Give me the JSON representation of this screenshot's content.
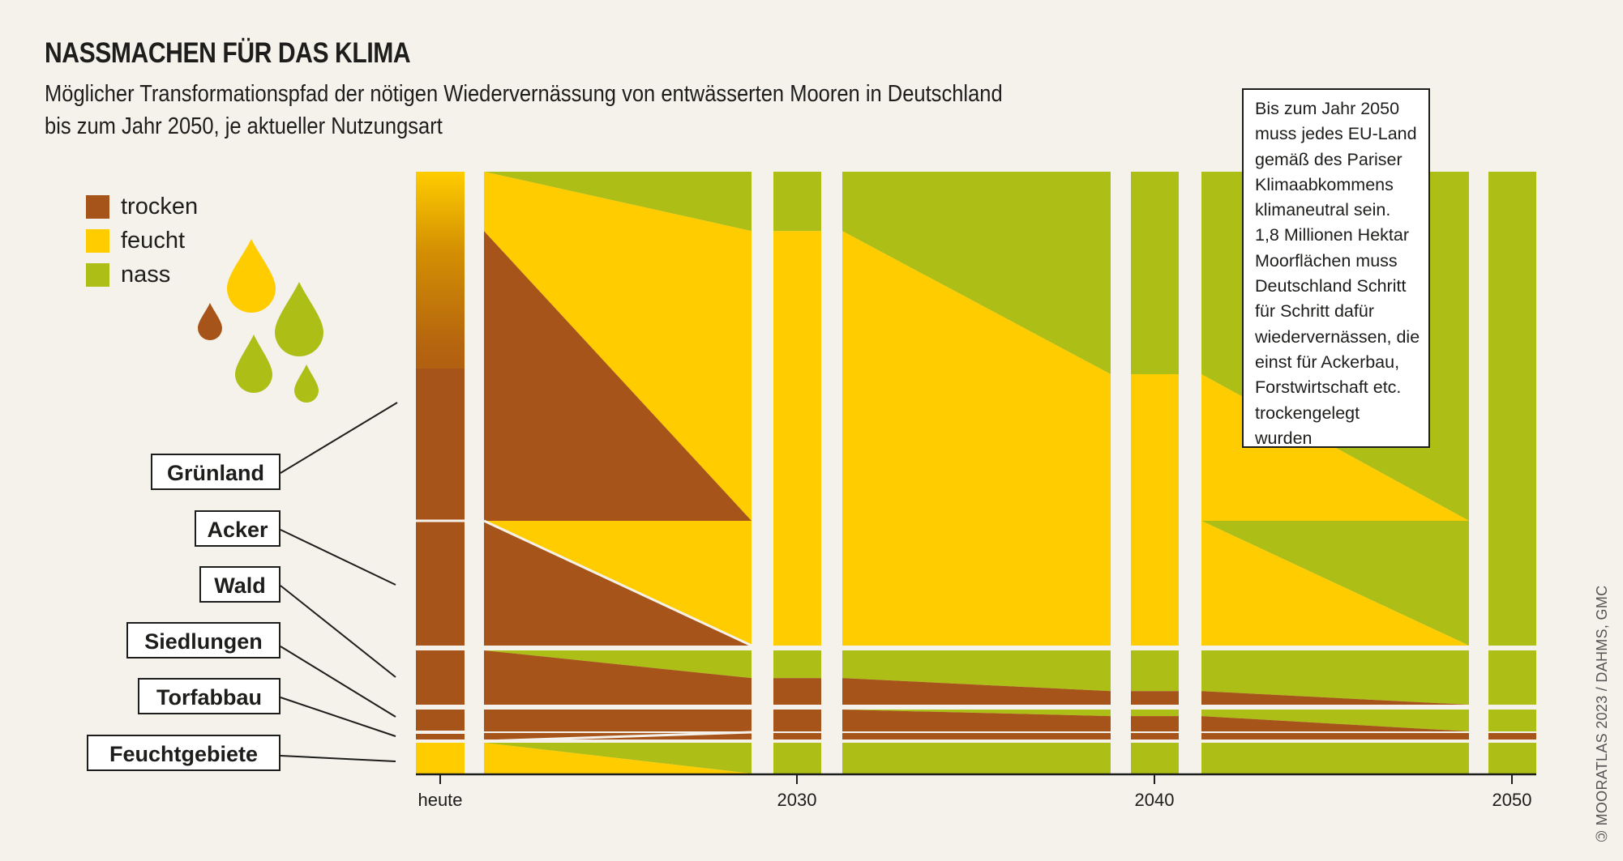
{
  "header": {
    "title": "NASSMACHEN FÜR DAS KLIMA",
    "subtitle_line1": "Möglicher Transformationspfad der nötigen Wiedervernässung von entwässerten Mooren in Deutschland",
    "subtitle_line2": "bis zum Jahr 2050, je aktueller Nutzungsart"
  },
  "legend": [
    {
      "label": "trocken",
      "color": "#a7541a"
    },
    {
      "label": "feucht",
      "color": "#ffcc00"
    },
    {
      "label": "nass",
      "color": "#adbe17"
    }
  ],
  "decoration": {
    "drops": [
      {
        "name": "feucht",
        "color": "#ffcc00"
      },
      {
        "name": "trocken",
        "color": "#a7541a"
      },
      {
        "name": "nass",
        "color": "#adbe17"
      },
      {
        "name": "nass",
        "color": "#adbe17"
      },
      {
        "name": "nass",
        "color": "#adbe17"
      }
    ]
  },
  "callout": {
    "lines": [
      "Bis zum Jahr 2050",
      "muss jedes EU-Land",
      "gemäß des Pariser",
      "Klimaabkommens",
      "klimaneutral sein.",
      "1,8 Millionen Hektar",
      "Moorflächen muss",
      "Deutschland Schritt",
      "für Schritt dafür",
      "wiedervernässen, die",
      "einst für Ackerbau,",
      "Forstwirtschaft etc.",
      "trockengelegt",
      "wurden"
    ]
  },
  "credit": "🄯 MOORATLAS 2023 / DAHMS, GMC",
  "chart_data": {
    "type": "area",
    "title": "NASSMACHEN FÜR DAS KLIMA",
    "subtitle": "Möglicher Transformationspfad der nötigen Wiedervernässung von entwässerten Mooren in Deutschland bis zum Jahr 2050, je aktueller Nutzungsart",
    "xlabel": "",
    "ylabel": "",
    "x": [
      "heute",
      "2030",
      "2040",
      "2050"
    ],
    "tick_labels": [
      "heute",
      "2030",
      "2040",
      "2050"
    ],
    "stack_order": [
      "nass",
      "feucht",
      "trocken"
    ],
    "colors": {
      "trocken": "#a7541a",
      "feucht": "#ffcc00",
      "nass": "#adbe17"
    },
    "legend_position": "top-left",
    "grid": false,
    "categories": [
      {
        "name": "Grünland",
        "area_share": 74,
        "series": {
          "nass": [
            0,
            17,
            58,
            100
          ],
          "feucht": [
            17,
            83,
            42,
            0
          ],
          "trocken": [
            83,
            0,
            0,
            0
          ]
        }
      },
      {
        "name": "Acker",
        "area_share": 26,
        "series": {
          "nass": [
            0,
            0,
            0,
            100
          ],
          "feucht": [
            0,
            100,
            100,
            0
          ],
          "trocken": [
            100,
            0,
            0,
            0
          ]
        }
      },
      {
        "name": "Wald",
        "area_share": 11,
        "series": {
          "nass": [
            0,
            51,
            75,
            100
          ],
          "feucht": [
            0,
            0,
            0,
            0
          ],
          "trocken": [
            100,
            49,
            25,
            0
          ]
        }
      },
      {
        "name": "Siedlungen",
        "area_share": 5,
        "series": {
          "nass": [
            0,
            0,
            30,
            100
          ],
          "feucht": [
            0,
            0,
            0,
            0
          ],
          "trocken": [
            100,
            100,
            70,
            0
          ]
        }
      },
      {
        "name": "Torfabbau",
        "area_share": 1.5,
        "series": {
          "nass": [
            0,
            0,
            0,
            0
          ],
          "feucht": [
            0,
            0,
            0,
            0
          ],
          "trocken": [
            100,
            100,
            100,
            100
          ]
        }
      },
      {
        "name": "Feuchtgebiete",
        "area_share": 6.5,
        "series": {
          "nass": [
            0,
            100,
            100,
            100
          ],
          "feucht": [
            100,
            0,
            0,
            0
          ],
          "trocken": [
            0,
            0,
            0,
            0
          ]
        }
      }
    ],
    "annotation": "heute-Balken: Übergang feucht→trocken als Farbverlauf"
  }
}
